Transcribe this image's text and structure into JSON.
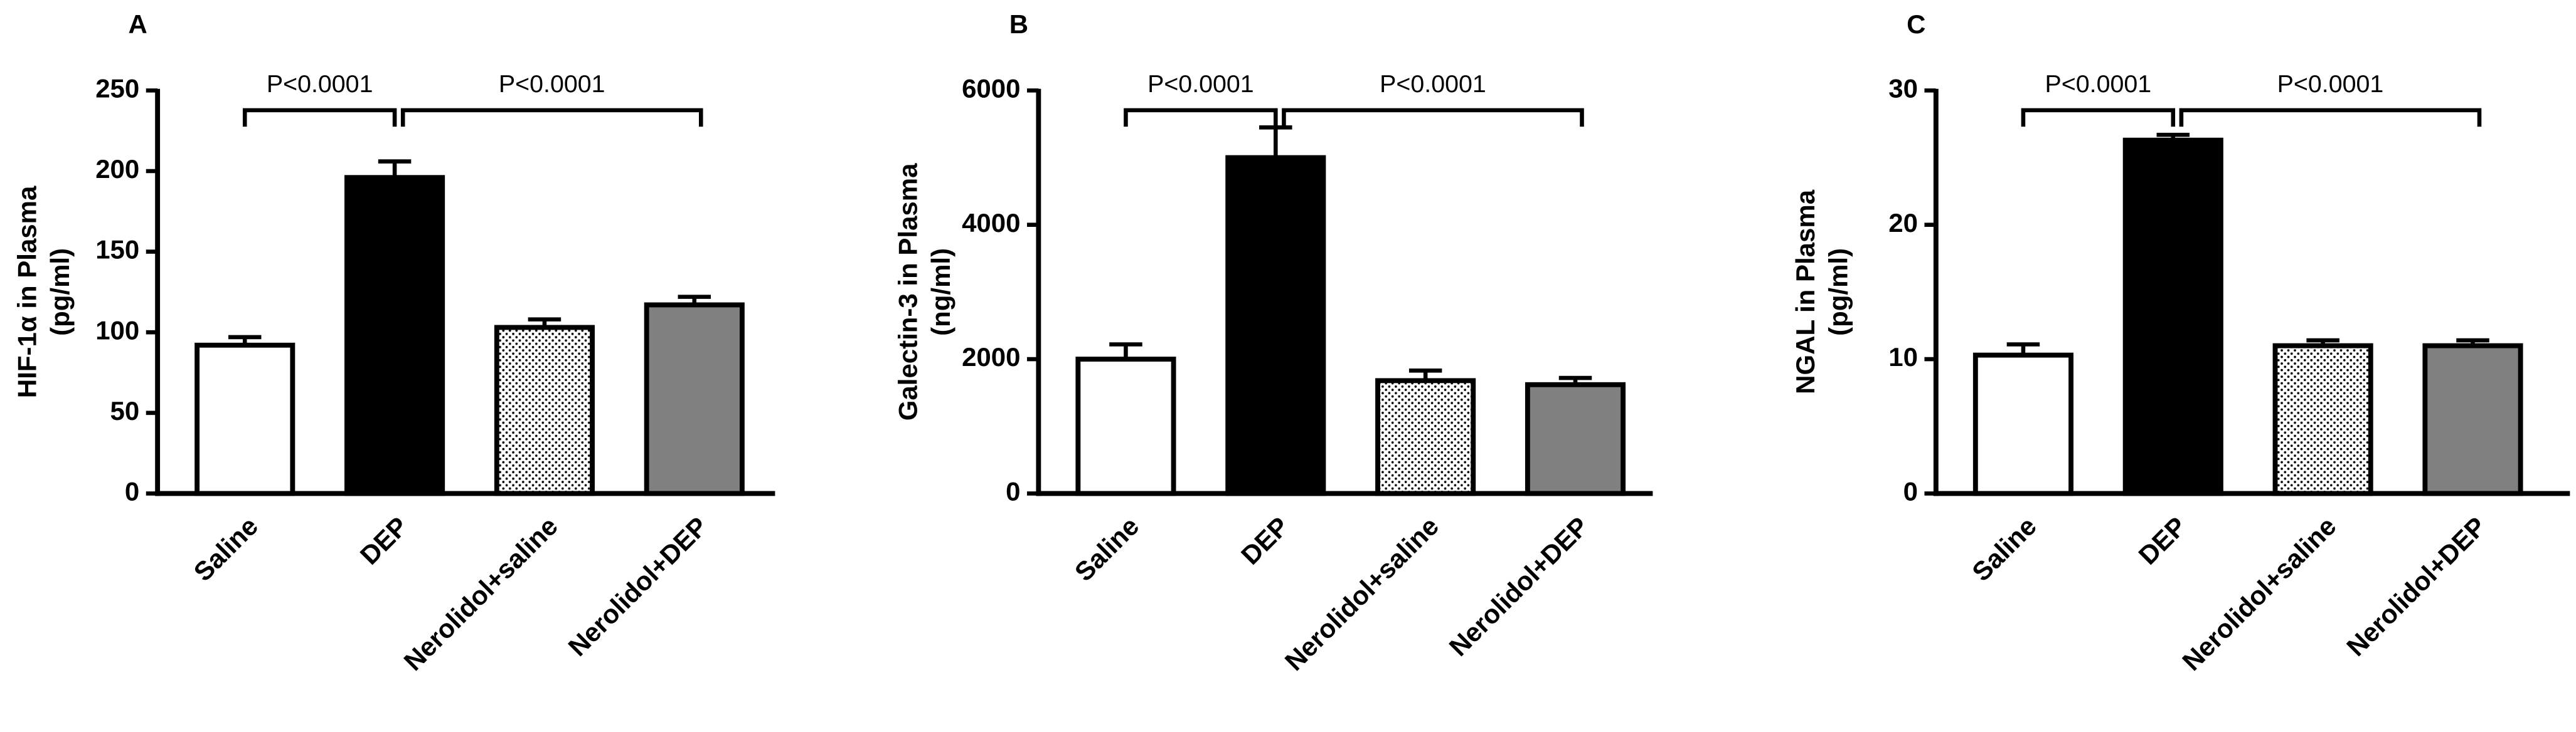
{
  "chart_data": [
    {
      "type": "bar",
      "panel": "A",
      "y_label": [
        "HIF-1α in Plasma",
        "(pg/ml)"
      ],
      "categories": [
        "Saline",
        "DEP",
        "Nerolidol+saline",
        "Nerolidol+DEP"
      ],
      "values": [
        92,
        196,
        103,
        117
      ],
      "errors": [
        5,
        10,
        5,
        5
      ],
      "fills": [
        "#ffffff",
        "#000000",
        "dotted",
        "#808080"
      ],
      "ylim": [
        0,
        250
      ],
      "yticks": [
        0,
        50,
        100,
        150,
        200,
        250
      ],
      "annotations": [
        {
          "label": "P<0.0001",
          "between": [
            0,
            1
          ]
        },
        {
          "label": "P<0.0001",
          "between": [
            1,
            3
          ]
        }
      ]
    },
    {
      "type": "bar",
      "panel": "B",
      "y_label": [
        "Galectin-3 in Plasma",
        "(ng/ml)"
      ],
      "categories": [
        "Saline",
        "DEP",
        "Nerolidol+saline",
        "Nerolidol+DEP"
      ],
      "values": [
        2000,
        5000,
        1680,
        1620
      ],
      "errors": [
        220,
        450,
        150,
        100
      ],
      "fills": [
        "#ffffff",
        "#000000",
        "dotted",
        "#808080"
      ],
      "ylim": [
        0,
        6000
      ],
      "yticks": [
        0,
        2000,
        4000,
        6000
      ],
      "annotations": [
        {
          "label": "P<0.0001",
          "between": [
            0,
            1
          ]
        },
        {
          "label": "P<0.0001",
          "between": [
            1,
            3
          ]
        }
      ]
    },
    {
      "type": "bar",
      "panel": "C",
      "y_label": [
        "NGAL in Plasma",
        "(pg/ml)"
      ],
      "categories": [
        "Saline",
        "DEP",
        "Nerolidol+saline",
        "Nerolidol+DEP"
      ],
      "values": [
        10.3,
        26.3,
        11,
        11
      ],
      "errors": [
        0.8,
        0.4,
        0.4,
        0.4
      ],
      "fills": [
        "#ffffff",
        "#000000",
        "dotted",
        "#808080"
      ],
      "ylim": [
        0,
        30
      ],
      "yticks": [
        0,
        10,
        20,
        30
      ],
      "annotations": [
        {
          "label": "P<0.0001",
          "between": [
            0,
            1
          ]
        },
        {
          "label": "P<0.0001",
          "between": [
            1,
            3
          ]
        }
      ]
    }
  ]
}
